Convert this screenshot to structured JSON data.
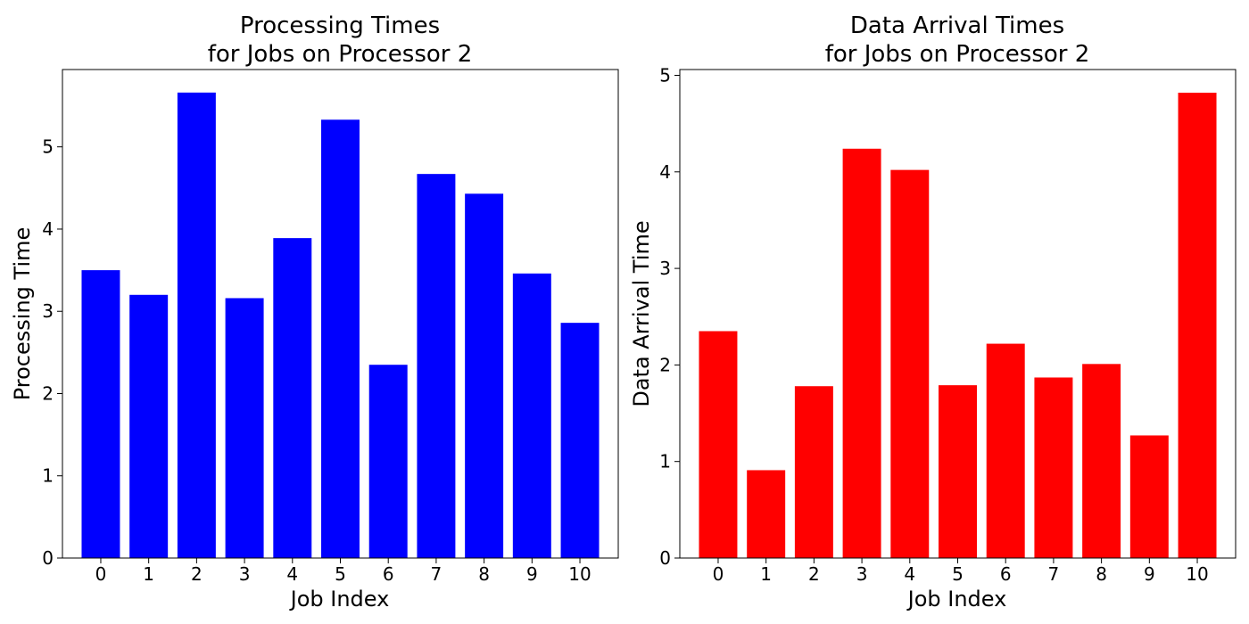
{
  "chart_data": [
    {
      "type": "bar",
      "title_lines": [
        "Processing Times",
        "for Jobs on Processor 2"
      ],
      "xlabel": "Job Index",
      "ylabel": "Processing Time",
      "categories": [
        "0",
        "1",
        "2",
        "3",
        "4",
        "5",
        "6",
        "7",
        "8",
        "9",
        "10"
      ],
      "values": [
        3.5,
        3.2,
        5.66,
        3.16,
        3.89,
        5.33,
        2.35,
        4.67,
        4.43,
        3.46,
        2.86
      ],
      "yticks": [
        0,
        1,
        2,
        3,
        4,
        5
      ],
      "ylim": [
        0,
        5.94
      ],
      "color": "#0000ff",
      "grid": false,
      "legend": "none"
    },
    {
      "type": "bar",
      "title_lines": [
        "Data Arrival Times",
        "for Jobs on Processor 2"
      ],
      "xlabel": "Job Index",
      "ylabel": "Data Arrival Time",
      "categories": [
        "0",
        "1",
        "2",
        "3",
        "4",
        "5",
        "6",
        "7",
        "8",
        "9",
        "10"
      ],
      "values": [
        2.35,
        0.91,
        1.78,
        4.24,
        4.02,
        1.79,
        2.22,
        1.87,
        2.01,
        1.27,
        4.82
      ],
      "yticks": [
        0,
        1,
        2,
        3,
        4,
        5
      ],
      "ylim": [
        0,
        5.06
      ],
      "color": "#ff0000",
      "grid": false,
      "legend": "none"
    }
  ]
}
